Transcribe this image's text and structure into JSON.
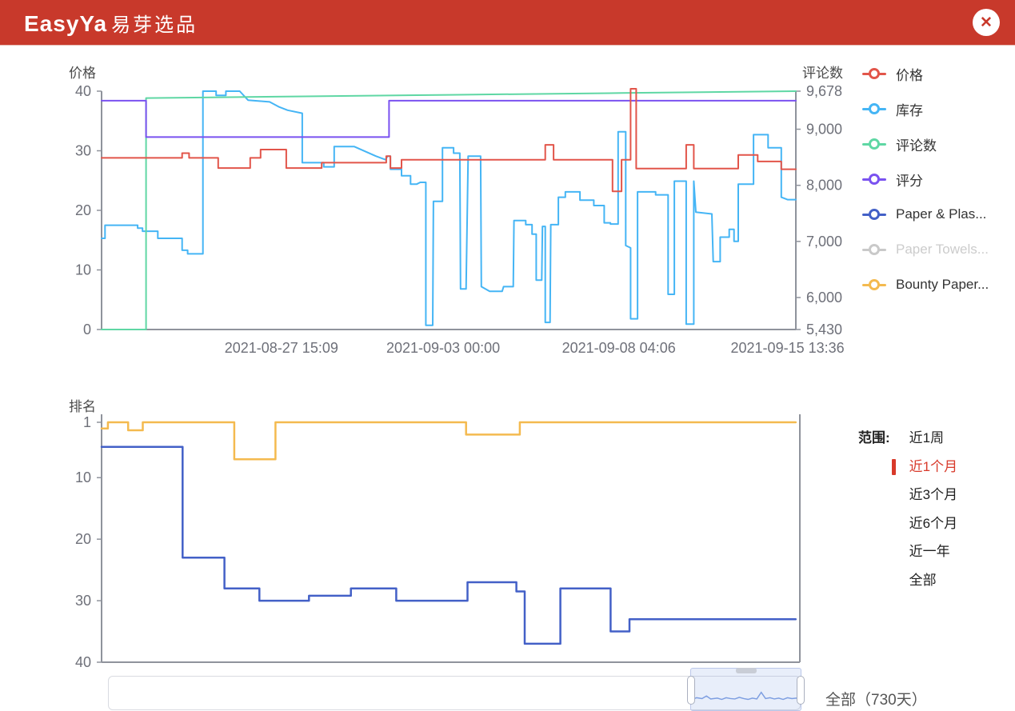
{
  "header": {
    "logo_en": "EasyYa",
    "logo_zh": "易芽选品",
    "close_icon": "✕"
  },
  "colors": {
    "header_bg": "#c8392b",
    "axis_line": "#8f939c",
    "tick_text": "#6e7079",
    "axis_title": "#4a4a4a",
    "selected_range": "#d8392a"
  },
  "chart_data": [
    {
      "type": "line",
      "x_tick_labels": [
        {
          "text": "2021-08-27 15:09",
          "pos": 25.9
        },
        {
          "text": "2021-09-03 00:00",
          "pos": 49.2
        },
        {
          "text": "2021-09-08 04:06",
          "pos": 74.5
        },
        {
          "text": "2021-09-15 13:36",
          "pos": 98.8
        }
      ],
      "y_left": {
        "title": "价格",
        "min": 0,
        "max": 40,
        "ticks": [
          0,
          10,
          20,
          30,
          40
        ]
      },
      "y_right": {
        "title": "评论数",
        "min": 5430,
        "max": 9678,
        "ticks": [
          {
            "v": 5430,
            "label": "5,430"
          },
          {
            "v": 6000,
            "label": "6,000"
          },
          {
            "v": 7000,
            "label": "7,000"
          },
          {
            "v": 8000,
            "label": "8,000"
          },
          {
            "v": 9000,
            "label": "9,000"
          },
          {
            "v": 9678,
            "label": "9,678"
          }
        ]
      },
      "series": [
        {
          "id": "stock",
          "name": "库存",
          "color": "#45b5f5",
          "axis": "left",
          "points": [
            [
              0,
              15.3
            ],
            [
              0.5,
              15.3
            ],
            [
              0.5,
              17.5
            ],
            [
              5.2,
              17.5
            ],
            [
              5.2,
              17.0
            ],
            [
              5.9,
              17.0
            ],
            [
              5.9,
              16.5
            ],
            [
              8.1,
              16.5
            ],
            [
              8.1,
              15.3
            ],
            [
              11.6,
              15.3
            ],
            [
              11.6,
              13.3
            ],
            [
              12.4,
              13.3
            ],
            [
              12.4,
              12.7
            ],
            [
              14.6,
              12.7
            ],
            [
              14.6,
              40
            ],
            [
              16.5,
              40
            ],
            [
              16.5,
              39.3
            ],
            [
              17.9,
              39.3
            ],
            [
              17.9,
              40
            ],
            [
              19.9,
              40
            ],
            [
              21.1,
              38.5
            ],
            [
              24.2,
              38.2
            ],
            [
              25.5,
              37.4
            ],
            [
              26.8,
              36.8
            ],
            [
              28.9,
              36.3
            ],
            [
              28.9,
              28.0
            ],
            [
              32.0,
              28.0
            ],
            [
              32.0,
              27.3
            ],
            [
              33.5,
              27.3
            ],
            [
              33.5,
              30.7
            ],
            [
              36.4,
              30.7
            ],
            [
              39.5,
              29.1
            ],
            [
              40.9,
              28.5
            ],
            [
              41.2,
              29.1
            ],
            [
              41.6,
              29.1
            ],
            [
              41.6,
              26.9
            ],
            [
              43.2,
              26.9
            ],
            [
              43.2,
              25.8
            ],
            [
              44.5,
              25.8
            ],
            [
              44.5,
              24.4
            ],
            [
              45.4,
              24.4
            ],
            [
              45.9,
              24.7
            ],
            [
              46.7,
              24.7
            ],
            [
              46.7,
              0.7
            ],
            [
              47.7,
              0.7
            ],
            [
              47.8,
              21.5
            ],
            [
              49.1,
              21.5
            ],
            [
              49.1,
              30.5
            ],
            [
              50.7,
              30.5
            ],
            [
              50.7,
              29.6
            ],
            [
              51.6,
              29.6
            ],
            [
              51.7,
              6.8
            ],
            [
              52.5,
              6.8
            ],
            [
              52.8,
              29.1
            ],
            [
              54.6,
              29.1
            ],
            [
              54.7,
              7.2
            ],
            [
              55.9,
              6.4
            ],
            [
              57.7,
              6.4
            ],
            [
              57.9,
              7.2
            ],
            [
              59.3,
              7.2
            ],
            [
              59.4,
              18.3
            ],
            [
              61.1,
              18.3
            ],
            [
              61.1,
              17.6
            ],
            [
              62.0,
              17.6
            ],
            [
              62.0,
              16.0
            ],
            [
              62.6,
              16.0
            ],
            [
              62.6,
              8.3
            ],
            [
              63.4,
              8.3
            ],
            [
              63.5,
              17.3
            ],
            [
              63.9,
              17.3
            ],
            [
              63.9,
              1.2
            ],
            [
              64.6,
              1.2
            ],
            [
              64.7,
              17.6
            ],
            [
              65.8,
              17.6
            ],
            [
              65.8,
              22.2
            ],
            [
              66.8,
              22.2
            ],
            [
              66.8,
              23.1
            ],
            [
              68.9,
              23.1
            ],
            [
              68.9,
              21.7
            ],
            [
              70.9,
              21.7
            ],
            [
              70.9,
              20.8
            ],
            [
              72.4,
              20.8
            ],
            [
              72.4,
              17.9
            ],
            [
              73.3,
              17.9
            ],
            [
              73.3,
              17.7
            ],
            [
              74.4,
              17.7
            ],
            [
              74.4,
              33.2
            ],
            [
              75.5,
              33.2
            ],
            [
              75.5,
              14.1
            ],
            [
              76.2,
              13.7
            ],
            [
              76.2,
              1.8
            ],
            [
              77.2,
              1.8
            ],
            [
              77.2,
              23.1
            ],
            [
              79.8,
              23.1
            ],
            [
              79.8,
              22.6
            ],
            [
              81.6,
              22.6
            ],
            [
              81.6,
              5.9
            ],
            [
              82.5,
              5.9
            ],
            [
              82.5,
              24.9
            ],
            [
              84.2,
              24.9
            ],
            [
              84.2,
              0.9
            ],
            [
              85.3,
              0.9
            ],
            [
              85.3,
              24.9
            ],
            [
              85.6,
              19.7
            ],
            [
              87.9,
              19.4
            ],
            [
              88.1,
              11.4
            ],
            [
              89.1,
              11.4
            ],
            [
              89.1,
              15.5
            ],
            [
              90.4,
              15.5
            ],
            [
              90.4,
              16.8
            ],
            [
              91.1,
              16.8
            ],
            [
              91.1,
              14.8
            ],
            [
              91.7,
              14.8
            ],
            [
              91.7,
              24.4
            ],
            [
              93.9,
              24.4
            ],
            [
              93.9,
              32.7
            ],
            [
              96.0,
              32.7
            ],
            [
              96.0,
              30.5
            ],
            [
              97.9,
              30.5
            ],
            [
              97.9,
              22.2
            ],
            [
              98.8,
              21.8
            ],
            [
              100,
              21.8
            ]
          ]
        },
        {
          "id": "reviews",
          "name": "评论数",
          "color": "#5fd7a4",
          "axis": "right",
          "points": [
            [
              0,
              5430
            ],
            [
              6.4,
              5430
            ],
            [
              6.4,
              9555
            ],
            [
              25,
              9580
            ],
            [
              50,
              9612
            ],
            [
              75,
              9645
            ],
            [
              100,
              9678
            ]
          ]
        },
        {
          "id": "rating",
          "name": "评分",
          "color": "#7a52f0",
          "axis": "left",
          "points": [
            [
              0,
              38.4
            ],
            [
              6.4,
              38.4
            ],
            [
              6.4,
              32.3
            ],
            [
              41.4,
              32.3
            ],
            [
              41.4,
              38.4
            ],
            [
              100,
              38.4
            ]
          ]
        },
        {
          "id": "price",
          "name": "价格",
          "color": "#e2554a",
          "axis": "left",
          "points": [
            [
              0,
              28.8
            ],
            [
              11.6,
              28.8
            ],
            [
              11.6,
              29.6
            ],
            [
              12.6,
              29.6
            ],
            [
              12.6,
              28.8
            ],
            [
              16.8,
              28.8
            ],
            [
              16.8,
              27.1
            ],
            [
              21.4,
              27.1
            ],
            [
              21.4,
              28.8
            ],
            [
              22.9,
              28.8
            ],
            [
              22.9,
              30.2
            ],
            [
              26.6,
              30.2
            ],
            [
              26.6,
              27.1
            ],
            [
              31.7,
              27.1
            ],
            [
              31.7,
              28.0
            ],
            [
              41.0,
              28.0
            ],
            [
              41.0,
              29.1
            ],
            [
              41.6,
              29.1
            ],
            [
              41.6,
              27.1
            ],
            [
              43.2,
              27.1
            ],
            [
              43.2,
              28.5
            ],
            [
              63.9,
              28.5
            ],
            [
              63.9,
              31.0
            ],
            [
              65.1,
              31.0
            ],
            [
              65.1,
              28.5
            ],
            [
              73.6,
              28.5
            ],
            [
              73.6,
              23.2
            ],
            [
              74.9,
              23.2
            ],
            [
              74.9,
              28.5
            ],
            [
              76.2,
              28.5
            ],
            [
              76.2,
              40.4
            ],
            [
              77.0,
              40.4
            ],
            [
              77.0,
              27.0
            ],
            [
              84.2,
              27.0
            ],
            [
              84.2,
              31.0
            ],
            [
              85.3,
              31.0
            ],
            [
              85.3,
              27.0
            ],
            [
              91.7,
              27.0
            ],
            [
              91.7,
              29.3
            ],
            [
              94.5,
              29.3
            ],
            [
              94.5,
              28.2
            ],
            [
              97.9,
              28.2
            ],
            [
              97.9,
              26.9
            ],
            [
              100,
              26.9
            ]
          ]
        }
      ]
    },
    {
      "type": "line",
      "y_axis": {
        "title": "排名",
        "min": 1,
        "max": 40,
        "inverted": true,
        "ticks": [
          1,
          10,
          20,
          30,
          40
        ]
      },
      "series": [
        {
          "id": "paper-plas-rank",
          "name": "Paper & Plas...",
          "color": "#4360c7",
          "points": [
            [
              0,
              5
            ],
            [
              11.6,
              5
            ],
            [
              11.6,
              23
            ],
            [
              17.6,
              23
            ],
            [
              17.6,
              28
            ],
            [
              22.6,
              28
            ],
            [
              22.6,
              30
            ],
            [
              29.7,
              30
            ],
            [
              29.7,
              29.2
            ],
            [
              35.7,
              29.2
            ],
            [
              35.7,
              28
            ],
            [
              42.2,
              28
            ],
            [
              42.2,
              30
            ],
            [
              52.4,
              30
            ],
            [
              52.4,
              27
            ],
            [
              59.4,
              27
            ],
            [
              59.4,
              28.5
            ],
            [
              60.6,
              28.5
            ],
            [
              60.6,
              37
            ],
            [
              65.7,
              37
            ],
            [
              65.7,
              28
            ],
            [
              72.9,
              28
            ],
            [
              72.9,
              35
            ],
            [
              75.6,
              35
            ],
            [
              75.6,
              33
            ],
            [
              99.4,
              33
            ]
          ]
        },
        {
          "id": "bounty-rank",
          "name": "Bounty Paper...",
          "color": "#f4ba4f",
          "points": [
            [
              0,
              2
            ],
            [
              0.9,
              2
            ],
            [
              0.9,
              1
            ],
            [
              3.8,
              1
            ],
            [
              3.8,
              2.3
            ],
            [
              5.9,
              2.3
            ],
            [
              5.9,
              1
            ],
            [
              19.0,
              1
            ],
            [
              19.0,
              7
            ],
            [
              24.9,
              7
            ],
            [
              24.9,
              1
            ],
            [
              52.2,
              1
            ],
            [
              52.2,
              3
            ],
            [
              59.9,
              3
            ],
            [
              59.9,
              1
            ],
            [
              99.4,
              1
            ]
          ]
        }
      ]
    }
  ],
  "legend": {
    "items": [
      {
        "label": "价格",
        "color": "#e2554a",
        "disabled": false
      },
      {
        "label": "库存",
        "color": "#45b5f5",
        "disabled": false
      },
      {
        "label": "评论数",
        "color": "#5fd7a4",
        "disabled": false
      },
      {
        "label": "评分",
        "color": "#7a52f0",
        "disabled": false
      },
      {
        "label": "Paper & Plas...",
        "color": "#4360c7",
        "disabled": false
      },
      {
        "label": "Paper Towels...",
        "color": "#c9c9c9",
        "disabled": true
      },
      {
        "label": "Bounty Paper...",
        "color": "#f4ba4f",
        "disabled": false
      }
    ]
  },
  "range_selector": {
    "label": "范围:",
    "options": [
      "近1周",
      "近1个月",
      "近3个月",
      "近6个月",
      "近一年",
      "全部"
    ],
    "selected_index": 1,
    "selected_color": "#d8392a"
  },
  "slider": {
    "range_label": "全部（730天）",
    "preview_points": [
      [
        0,
        0.75
      ],
      [
        5,
        0.7
      ],
      [
        10,
        0.72
      ],
      [
        14,
        0.66
      ],
      [
        18,
        0.73
      ],
      [
        24,
        0.71
      ],
      [
        28,
        0.74
      ],
      [
        32,
        0.7
      ],
      [
        36,
        0.72
      ],
      [
        40,
        0.73
      ],
      [
        44,
        0.69
      ],
      [
        48,
        0.72
      ],
      [
        52,
        0.74
      ],
      [
        56,
        0.71
      ],
      [
        60,
        0.73
      ],
      [
        64,
        0.57
      ],
      [
        68,
        0.72
      ],
      [
        72,
        0.7
      ],
      [
        76,
        0.73
      ],
      [
        80,
        0.71
      ],
      [
        84,
        0.74
      ],
      [
        88,
        0.7
      ],
      [
        92,
        0.72
      ],
      [
        96,
        0.71
      ],
      [
        100,
        0.73
      ]
    ]
  }
}
